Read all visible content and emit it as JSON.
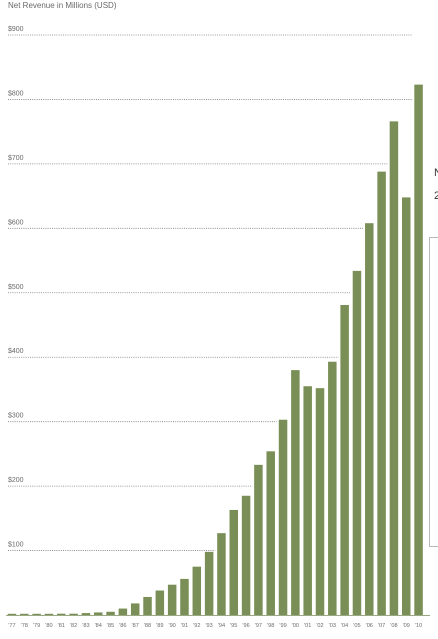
{
  "chart_data": {
    "type": "bar",
    "title": "Net Revenue in Millions (USD)",
    "xlabel": "",
    "ylabel": "",
    "ylim": [
      0,
      900
    ],
    "grid": "dotted horizontal lines at each labeled tick",
    "bar_color": "#7a8f57",
    "yticks": [
      {
        "value": 100,
        "label": "$100"
      },
      {
        "value": 200,
        "label": "$200"
      },
      {
        "value": 300,
        "label": "$300"
      },
      {
        "value": 400,
        "label": "$400"
      },
      {
        "value": 500,
        "label": "$500"
      },
      {
        "value": 600,
        "label": "$600"
      },
      {
        "value": 700,
        "label": "$700"
      },
      {
        "value": 800,
        "label": "$800"
      },
      {
        "value": 900,
        "label": "$900"
      }
    ],
    "categories": [
      "'77",
      "'78",
      "'79",
      "'80",
      "'81",
      "'82",
      "'83",
      "'84",
      "'85",
      "'86",
      "'87",
      "'88",
      "'89",
      "'90",
      "'91",
      "'92",
      "'93",
      "'94",
      "'95",
      "'96",
      "'97",
      "'98",
      "'99",
      "'00",
      "'01",
      "'02",
      "'03",
      "'04",
      "'05",
      "'06",
      "'07",
      "'08",
      "'09",
      "'10"
    ],
    "values": [
      1,
      1,
      1,
      1,
      2,
      2,
      3,
      4,
      5,
      10,
      18,
      28,
      38,
      47,
      56,
      75,
      98,
      127,
      163,
      185,
      233,
      254,
      303,
      380,
      355,
      352,
      393,
      481,
      534,
      608,
      688,
      766,
      648,
      823
    ]
  },
  "side_fragments": [
    "N",
    "2"
  ]
}
